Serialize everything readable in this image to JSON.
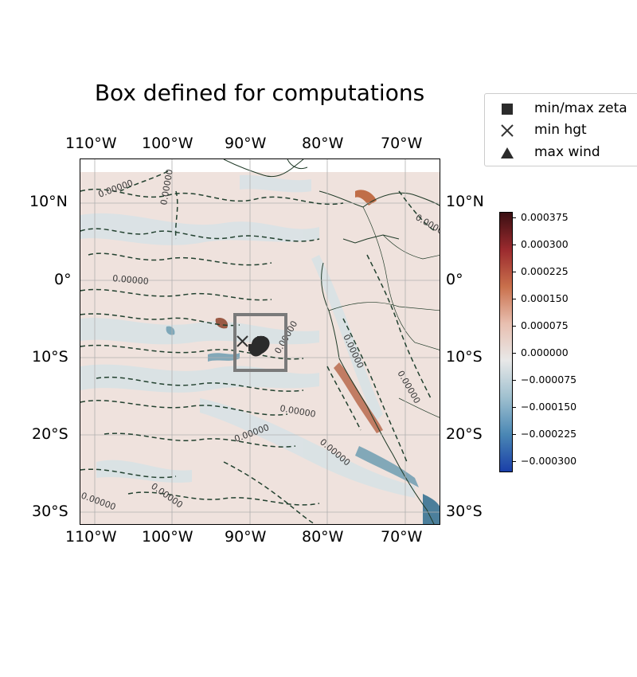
{
  "title": "Box defined for computations",
  "map": {
    "lon_range": [
      -112,
      -65.5
    ],
    "lat_range": [
      -31.5,
      15.5
    ],
    "lon_ticks": [
      "110°W",
      "100°W",
      "90°W",
      "80°W",
      "70°W"
    ],
    "lat_ticks": [
      "10°N",
      "0°",
      "10°S",
      "20°S",
      "30°S"
    ],
    "contour_label": "0.00000",
    "computation_box": {
      "lon": [
        -92,
        -85.5
      ],
      "lat": [
        -11.5,
        -4.5
      ],
      "color": "#7a7a7a"
    },
    "markers": {
      "min_hgt": {
        "lon": -90.8,
        "lat": -8.0
      },
      "min_max_zeta_cluster": {
        "lon": -88.8,
        "lat": -8.7
      }
    }
  },
  "legend": {
    "items": [
      {
        "symbol": "square-icon",
        "label": "min/max zeta"
      },
      {
        "symbol": "cross-icon",
        "label": "min hgt"
      },
      {
        "symbol": "triangle-icon",
        "label": "max wind"
      }
    ]
  },
  "colorbar": {
    "range": [
      -0.00033,
      0.00039
    ],
    "ticks": [
      "0.000375",
      "0.000300",
      "0.000225",
      "0.000150",
      "0.000075",
      "0.000000",
      "−0.000075",
      "−0.000150",
      "−0.000225",
      "−0.000300"
    ],
    "tick_values": [
      0.000375,
      0.0003,
      0.000225,
      0.00015,
      7.5e-05,
      0,
      -7.5e-05,
      -0.00015,
      -0.000225,
      -0.0003
    ],
    "colors": [
      "#1a3fa8",
      "#4a87b4",
      "#9fc0cf",
      "#e8e8e8",
      "#e8bfb0",
      "#c9704c",
      "#9b2a2e",
      "#3a0f12"
    ]
  }
}
